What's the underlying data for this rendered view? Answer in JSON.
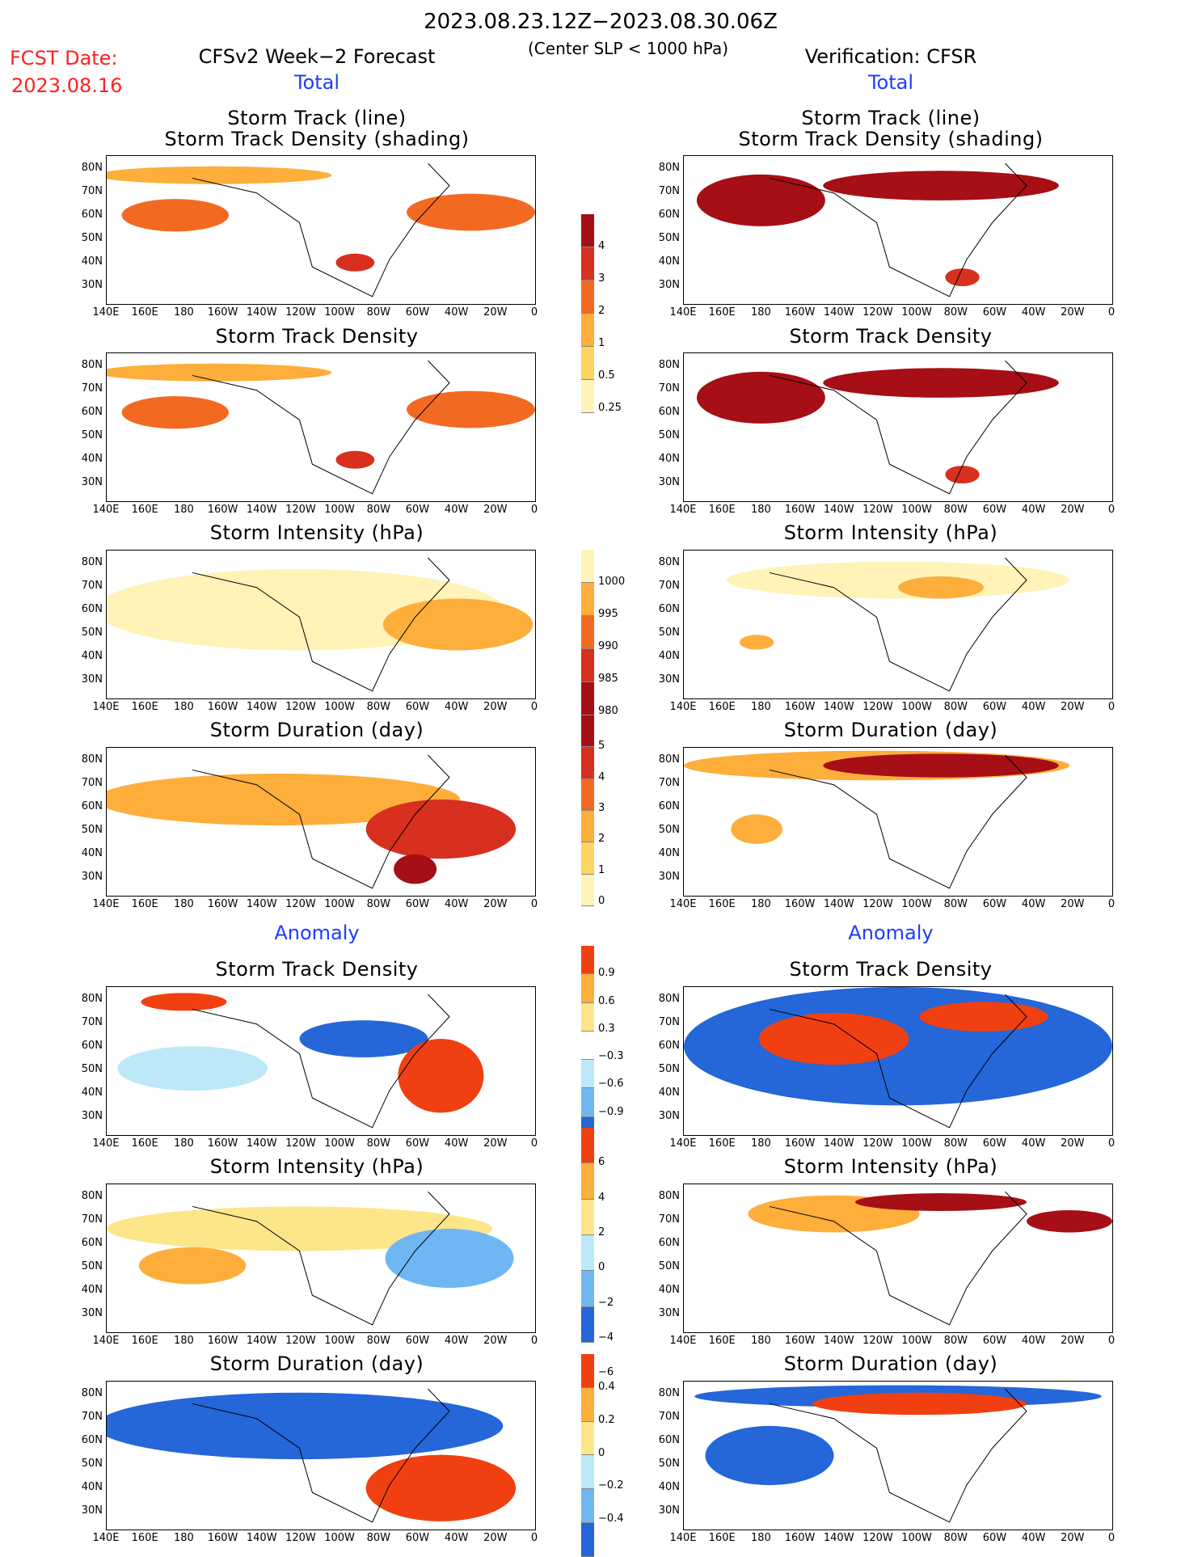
{
  "header": {
    "date_range": "2023.08.23.12Z−2023.08.30.06Z",
    "subtitle": "(Center SLP < 1000 hPa)",
    "fcst_label": "FCST Date:",
    "fcst_date": "2023.08.16",
    "left_title": "CFSv2 Week−2 Forecast",
    "right_title": "Verification: CFSR",
    "total_label": "Total",
    "anomaly_label": "Anomaly"
  },
  "panel_titles": {
    "track_line_1": "Storm Track (line)",
    "track_line_2": "Storm Track Density (shading)",
    "density": "Storm Track Density",
    "intensity": "Storm Intensity (hPa)",
    "duration": "Storm Duration (day)"
  },
  "axes": {
    "lat_ticks": [
      "80N",
      "70N",
      "60N",
      "50N",
      "40N",
      "30N"
    ],
    "lon_ticks": [
      "140E",
      "160E",
      "180",
      "160W",
      "140W",
      "120W",
      "100W",
      "80W",
      "60W",
      "40W",
      "20W",
      "0"
    ]
  },
  "colorbars": {
    "density": {
      "labels": [
        "4",
        "3",
        "2",
        "1",
        "0.5",
        "0.25"
      ],
      "colors": [
        "#a50f15",
        "#d7301f",
        "#f26a21",
        "#fdae3b",
        "#fdd462",
        "#fff3b8"
      ]
    },
    "intensity": {
      "labels": [
        "1000",
        "995",
        "990",
        "985",
        "980"
      ],
      "colors": [
        "#fff3b8",
        "#fdae3b",
        "#f26a21",
        "#d7301f",
        "#a50f15"
      ]
    },
    "duration": {
      "labels": [
        "5",
        "4",
        "3",
        "2",
        "1",
        "0"
      ],
      "colors": [
        "#a50f15",
        "#d7301f",
        "#f26a21",
        "#fdae3b",
        "#fdd462",
        "#fff3b8"
      ]
    },
    "density_anom": {
      "labels": [
        "0.9",
        "0.6",
        "0.3",
        "−0.3",
        "−0.6",
        "−0.9"
      ],
      "colors": [
        "#f04012",
        "#fdae3b",
        "#fde68a",
        "#ffffff",
        "#bde8f8",
        "#6fb7f2",
        "#2566d8"
      ]
    },
    "intensity_anom": {
      "labels": [
        "6",
        "4",
        "2",
        "0",
        "−2",
        "−4",
        "−6"
      ],
      "colors": [
        "#f04012",
        "#fdae3b",
        "#fde68a",
        "#bde8f8",
        "#6fb7f2",
        "#2566d8"
      ]
    },
    "duration_anom": {
      "labels": [
        "0.4",
        "0.2",
        "0",
        "−0.2",
        "−0.4"
      ],
      "colors": [
        "#f04012",
        "#fdae3b",
        "#fde68a",
        "#bde8f8",
        "#6fb7f2",
        "#2566d8"
      ]
    }
  }
}
